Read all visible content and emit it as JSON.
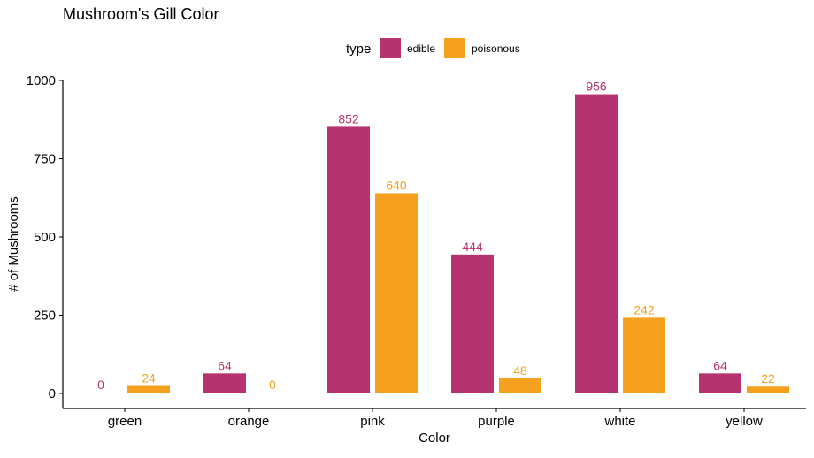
{
  "chart_data": {
    "type": "bar",
    "title": "Mushroom's Gill Color",
    "xlabel": "Color",
    "ylabel": "# of Mushrooms",
    "categories": [
      "green",
      "orange",
      "pink",
      "purple",
      "white",
      "yellow"
    ],
    "series": [
      {
        "name": "edible",
        "color": "#b5336e",
        "values": [
          0,
          64,
          852,
          444,
          956,
          64
        ]
      },
      {
        "name": "poisonous",
        "color": "#f6a020",
        "values": [
          24,
          0,
          640,
          48,
          242,
          22
        ]
      }
    ],
    "ylim": [
      0,
      1000
    ],
    "yticks": [
      0,
      250,
      500,
      750,
      1000
    ],
    "ytick_labels": [
      "0",
      "250",
      "500",
      "750",
      "1000"
    ],
    "legend": {
      "title": "type",
      "position": "top"
    },
    "grid": false
  }
}
